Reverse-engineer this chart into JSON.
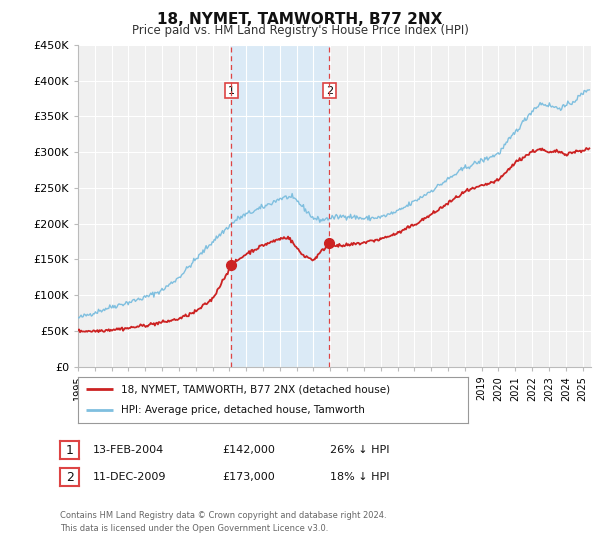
{
  "title": "18, NYMET, TAMWORTH, B77 2NX",
  "subtitle": "Price paid vs. HM Land Registry's House Price Index (HPI)",
  "xlim": [
    1995.0,
    2025.5
  ],
  "ylim": [
    0,
    450000
  ],
  "yticks": [
    0,
    50000,
    100000,
    150000,
    200000,
    250000,
    300000,
    350000,
    400000,
    450000
  ],
  "ytick_labels": [
    "£0",
    "£50K",
    "£100K",
    "£150K",
    "£200K",
    "£250K",
    "£300K",
    "£350K",
    "£400K",
    "£450K"
  ],
  "xticks": [
    1995,
    1996,
    1997,
    1998,
    1999,
    2000,
    2001,
    2002,
    2003,
    2004,
    2005,
    2006,
    2007,
    2008,
    2009,
    2010,
    2011,
    2012,
    2013,
    2014,
    2015,
    2016,
    2017,
    2018,
    2019,
    2020,
    2021,
    2022,
    2023,
    2024,
    2025
  ],
  "background_color": "#ffffff",
  "plot_bg_color": "#f0f0f0",
  "grid_color": "#ffffff",
  "hpi_color": "#7fbfdf",
  "price_color": "#cc2222",
  "marker_color": "#cc2222",
  "vline_color": "#dd4444",
  "shade_color": "#d8eaf8",
  "point1_x": 2004.12,
  "point1_y": 142000,
  "point2_x": 2009.95,
  "point2_y": 173000,
  "legend_label1": "18, NYMET, TAMWORTH, B77 2NX (detached house)",
  "legend_label2": "HPI: Average price, detached house, Tamworth",
  "table_row1_num": "1",
  "table_row1_date": "13-FEB-2004",
  "table_row1_price": "£142,000",
  "table_row1_pct": "26% ↓ HPI",
  "table_row2_num": "2",
  "table_row2_date": "11-DEC-2009",
  "table_row2_price": "£173,000",
  "table_row2_pct": "18% ↓ HPI",
  "footer1": "Contains HM Land Registry data © Crown copyright and database right 2024.",
  "footer2": "This data is licensed under the Open Government Licence v3.0."
}
